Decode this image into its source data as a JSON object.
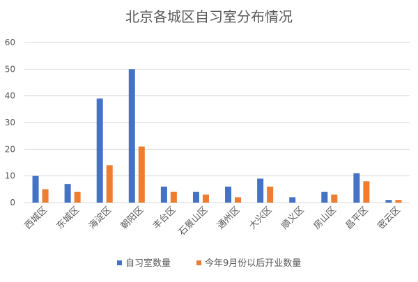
{
  "chart_data": {
    "type": "bar",
    "title": "北京各城区自习室分布情况",
    "xlabel": "",
    "ylabel": "",
    "ylim": [
      0,
      60
    ],
    "yticks": [
      0,
      10,
      20,
      30,
      40,
      50,
      60
    ],
    "grid": true,
    "legend_position": "bottom",
    "categories": [
      "西城区",
      "东城区",
      "海淀区",
      "朝阳区",
      "丰台区",
      "石景山区",
      "通州区",
      "大兴区",
      "顺义区",
      "房山区",
      "昌平区",
      "密云区"
    ],
    "series": [
      {
        "name": "自习室数量",
        "color": "#4472c4",
        "values": [
          10,
          7,
          39,
          50,
          6,
          4,
          6,
          9,
          2,
          4,
          11,
          1
        ]
      },
      {
        "name": "今年9月份以后开业数量",
        "color": "#ed7d31",
        "values": [
          5,
          4,
          14,
          21,
          4,
          3,
          2,
          6,
          0,
          3,
          8,
          1
        ]
      }
    ]
  }
}
